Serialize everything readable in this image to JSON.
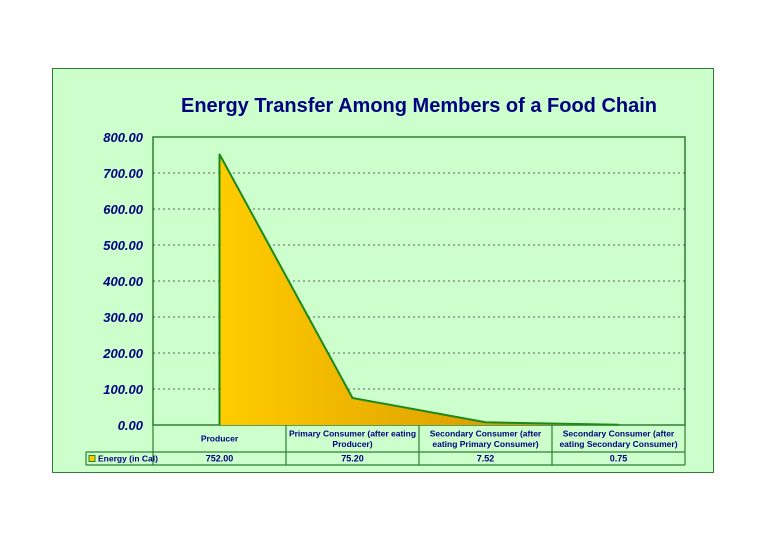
{
  "chart_data": {
    "type": "area",
    "title": "Energy Transfer Among Members of a Food Chain",
    "categories": [
      [
        "Producer"
      ],
      [
        "Primary Consumer (after eating",
        "Producer)"
      ],
      [
        "Secondary Consumer (after",
        "eating Primary Consumer)"
      ],
      [
        "Secondary Consumer (after",
        "eating Secondary Consumer)"
      ]
    ],
    "series": [
      {
        "name": "Energy (in Cal)",
        "values": [
          752.0,
          75.2,
          7.52,
          0.75
        ],
        "value_labels": [
          "752.00",
          "75.20",
          "7.52",
          "0.75"
        ]
      }
    ],
    "ylim": [
      0,
      800
    ],
    "yticks": [
      "0.00",
      "100.00",
      "200.00",
      "300.00",
      "400.00",
      "500.00",
      "600.00",
      "700.00",
      "800.00"
    ],
    "grid": true,
    "data_table": true,
    "colors": {
      "background": "#ccffcc",
      "border": "#2e7d32",
      "area_start": "#ffcc00",
      "area_end": "#cc8800",
      "area_line": "#1b8a1b",
      "text": "#000080",
      "grid": "#333333"
    }
  }
}
